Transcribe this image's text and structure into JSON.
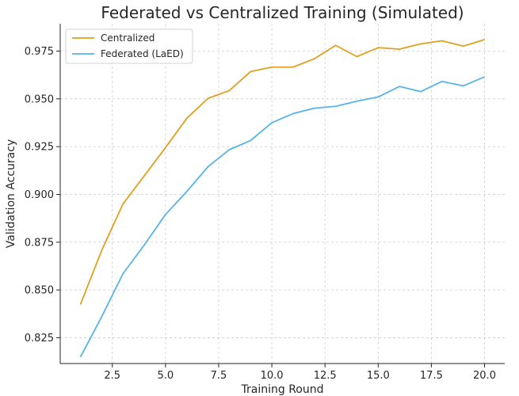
{
  "chart_data": {
    "type": "line",
    "title": "Federated vs Centralized Training (Simulated)",
    "xlabel": "Training Round",
    "ylabel": "Validation Accuracy",
    "xlim": [
      0.05,
      20.95
    ],
    "ylim": [
      0.8115,
      0.9893
    ],
    "xticks": [
      2.5,
      5.0,
      7.5,
      10.0,
      12.5,
      15.0,
      17.5,
      20.0
    ],
    "xtick_labels": [
      "2.5",
      "5.0",
      "7.5",
      "10.0",
      "12.5",
      "15.0",
      "17.5",
      "20.0"
    ],
    "yticks": [
      0.825,
      0.85,
      0.875,
      0.9,
      0.925,
      0.95,
      0.975
    ],
    "ytick_labels": [
      "0.825",
      "0.850",
      "0.875",
      "0.900",
      "0.925",
      "0.950",
      "0.975"
    ],
    "grid": true,
    "legend_position": "top-left",
    "x": [
      1,
      2,
      3,
      4,
      5,
      6,
      7,
      8,
      9,
      10,
      11,
      12,
      13,
      14,
      15,
      16,
      17,
      18,
      19,
      20
    ],
    "series": [
      {
        "name": "Centralized",
        "color": "#e0a020",
        "values": [
          0.8424,
          0.8707,
          0.895,
          0.9097,
          0.9245,
          0.9398,
          0.9503,
          0.9543,
          0.9643,
          0.9666,
          0.9666,
          0.971,
          0.978,
          0.9721,
          0.9768,
          0.976,
          0.9788,
          0.9804,
          0.9776,
          0.981
        ]
      },
      {
        "name": "Federated (LaED)",
        "color": "#56b4e9",
        "values": [
          0.8149,
          0.836,
          0.8585,
          0.8735,
          0.8895,
          0.9015,
          0.9145,
          0.9234,
          0.9282,
          0.9375,
          0.9423,
          0.9451,
          0.9461,
          0.9488,
          0.951,
          0.9565,
          0.9538,
          0.9591,
          0.9568,
          0.9615
        ]
      }
    ]
  }
}
